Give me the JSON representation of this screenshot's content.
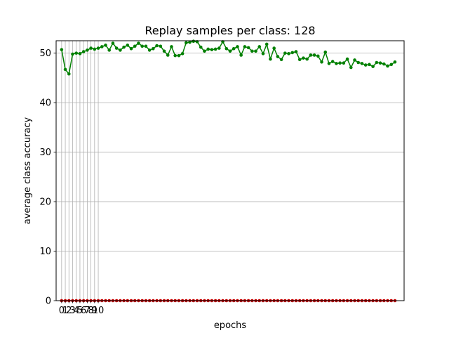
{
  "chart_data": {
    "type": "line",
    "title": "Replay samples per class: 128",
    "xlabel": "epochs",
    "ylabel": "average class accuracy",
    "xlim": [
      -1.5,
      93.5
    ],
    "ylim": [
      0,
      52.5
    ],
    "xticks": [
      0,
      1,
      2,
      3,
      4,
      5,
      6,
      7,
      8,
      9,
      10
    ],
    "yticks": [
      0,
      10,
      20,
      30,
      40,
      50
    ],
    "vertical_gridlines_at": [
      0,
      1,
      2,
      3,
      4,
      5,
      6,
      7,
      8,
      9,
      10
    ],
    "horizontal_grid": true,
    "series": [
      {
        "color": "#008000",
        "x": [
          0,
          1,
          2,
          3,
          4,
          5,
          6,
          7,
          8,
          9,
          10,
          11,
          12,
          13,
          14,
          15,
          16,
          17,
          18,
          19,
          20,
          21,
          22,
          23,
          24,
          25,
          26,
          27,
          28,
          29,
          30,
          31,
          32,
          33,
          34,
          35,
          36,
          37,
          38,
          39,
          40,
          41,
          42,
          43,
          44,
          45,
          46,
          47,
          48,
          49,
          50,
          51,
          52,
          53,
          54,
          55,
          56,
          57,
          58,
          59,
          60,
          61,
          62,
          63,
          64,
          65,
          66,
          67,
          68,
          69,
          70,
          71,
          72,
          73,
          74,
          75,
          76,
          77,
          78,
          79,
          80,
          81,
          82,
          83,
          84,
          85,
          86,
          87,
          88,
          89,
          90,
          91
        ],
        "values": [
          50.7,
          46.7,
          45.8,
          49.8,
          50.0,
          49.9,
          50.3,
          50.6,
          51.0,
          50.8,
          51.0,
          51.3,
          51.6,
          50.6,
          52.0,
          51.0,
          50.6,
          51.2,
          51.6,
          50.9,
          51.4,
          52.0,
          51.4,
          51.4,
          50.6,
          50.9,
          51.5,
          51.4,
          50.4,
          49.6,
          51.3,
          49.5,
          49.5,
          49.9,
          52.1,
          52.2,
          52.4,
          52.3,
          51.2,
          50.4,
          50.8,
          50.7,
          50.8,
          51.0,
          52.3,
          50.9,
          50.4,
          50.9,
          51.3,
          49.6,
          51.3,
          51.1,
          50.4,
          50.4,
          51.3,
          49.9,
          51.8,
          48.8,
          51.0,
          49.3,
          48.7,
          50.0,
          49.9,
          50.1,
          50.3,
          48.7,
          49.0,
          48.8,
          49.6,
          49.6,
          49.4,
          48.2,
          50.2,
          47.9,
          48.3,
          47.9,
          48.0,
          48.0,
          48.8,
          47.1,
          48.6,
          48.1,
          47.9,
          47.6,
          47.7,
          47.3,
          48.1,
          48.0,
          47.8,
          47.4,
          47.7,
          48.2
        ]
      },
      {
        "color": "#c00000",
        "x": [
          0,
          1,
          2,
          3,
          4,
          5,
          6,
          7,
          8,
          9,
          10,
          11,
          12,
          13,
          14,
          15,
          16,
          17,
          18,
          19,
          20,
          21,
          22,
          23,
          24,
          25,
          26,
          27,
          28,
          29,
          30,
          31,
          32,
          33,
          34,
          35,
          36,
          37,
          38,
          39,
          40,
          41,
          42,
          43,
          44,
          45,
          46,
          47,
          48,
          49,
          50,
          51,
          52,
          53,
          54,
          55,
          56,
          57,
          58,
          59,
          60,
          61,
          62,
          63,
          64,
          65,
          66,
          67,
          68,
          69,
          70,
          71,
          72,
          73,
          74,
          75,
          76,
          77,
          78,
          79,
          80,
          81,
          82,
          83,
          84,
          85,
          86,
          87,
          88,
          89,
          90,
          91
        ],
        "values": [
          0,
          0,
          0,
          0,
          0,
          0,
          0,
          0,
          0,
          0,
          0,
          0,
          0,
          0,
          0,
          0,
          0,
          0,
          0,
          0,
          0,
          0,
          0,
          0,
          0,
          0,
          0,
          0,
          0,
          0,
          0,
          0,
          0,
          0,
          0,
          0,
          0,
          0,
          0,
          0,
          0,
          0,
          0,
          0,
          0,
          0,
          0,
          0,
          0,
          0,
          0,
          0,
          0,
          0,
          0,
          0,
          0,
          0,
          0,
          0,
          0,
          0,
          0,
          0,
          0,
          0,
          0,
          0,
          0,
          0,
          0,
          0,
          0,
          0,
          0,
          0,
          0,
          0,
          0,
          0,
          0,
          0,
          0,
          0,
          0,
          0,
          0,
          0,
          0,
          0,
          0,
          0
        ]
      }
    ]
  }
}
